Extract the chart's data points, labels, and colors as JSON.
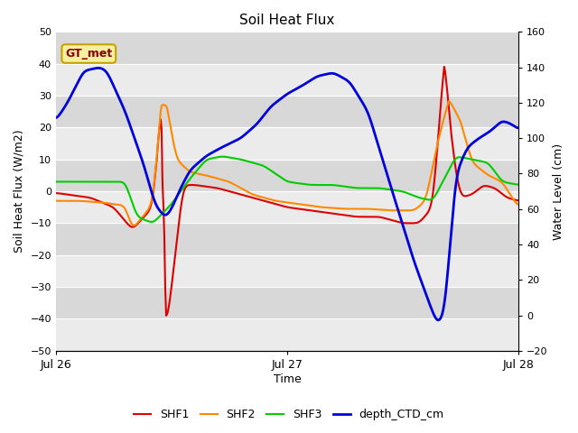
{
  "title": "Soil Heat Flux",
  "xlabel": "Time",
  "ylabel_left": "Soil Heat Flux (W/m2)",
  "ylabel_right": "Water Level (cm)",
  "ylim_left": [
    -50,
    50
  ],
  "ylim_right": [
    -20,
    160
  ],
  "yticks_left": [
    -50,
    -40,
    -30,
    -20,
    -10,
    0,
    10,
    20,
    30,
    40,
    50
  ],
  "yticks_right": [
    -20,
    0,
    20,
    40,
    60,
    80,
    100,
    120,
    140,
    160
  ],
  "xtick_labels": [
    "Jul 26",
    "Jul 27",
    "Jul 28"
  ],
  "bg_color_light": "#ebebeb",
  "bg_color_dark": "#d8d8d8",
  "grid_color": "#ffffff",
  "annotation_text": "GT_met",
  "annotation_bg": "#f5f0a0",
  "annotation_border": "#c8a000",
  "annotation_fg": "#8b0000",
  "legend_entries": [
    "SHF1",
    "SHF2",
    "SHF3",
    "depth_CTD_cm"
  ],
  "colors": {
    "SHF1": "#dd0000",
    "SHF2": "#ff8800",
    "SHF3": "#00cc00",
    "depth_CTD_cm": "#0000dd"
  },
  "n_points": 500
}
